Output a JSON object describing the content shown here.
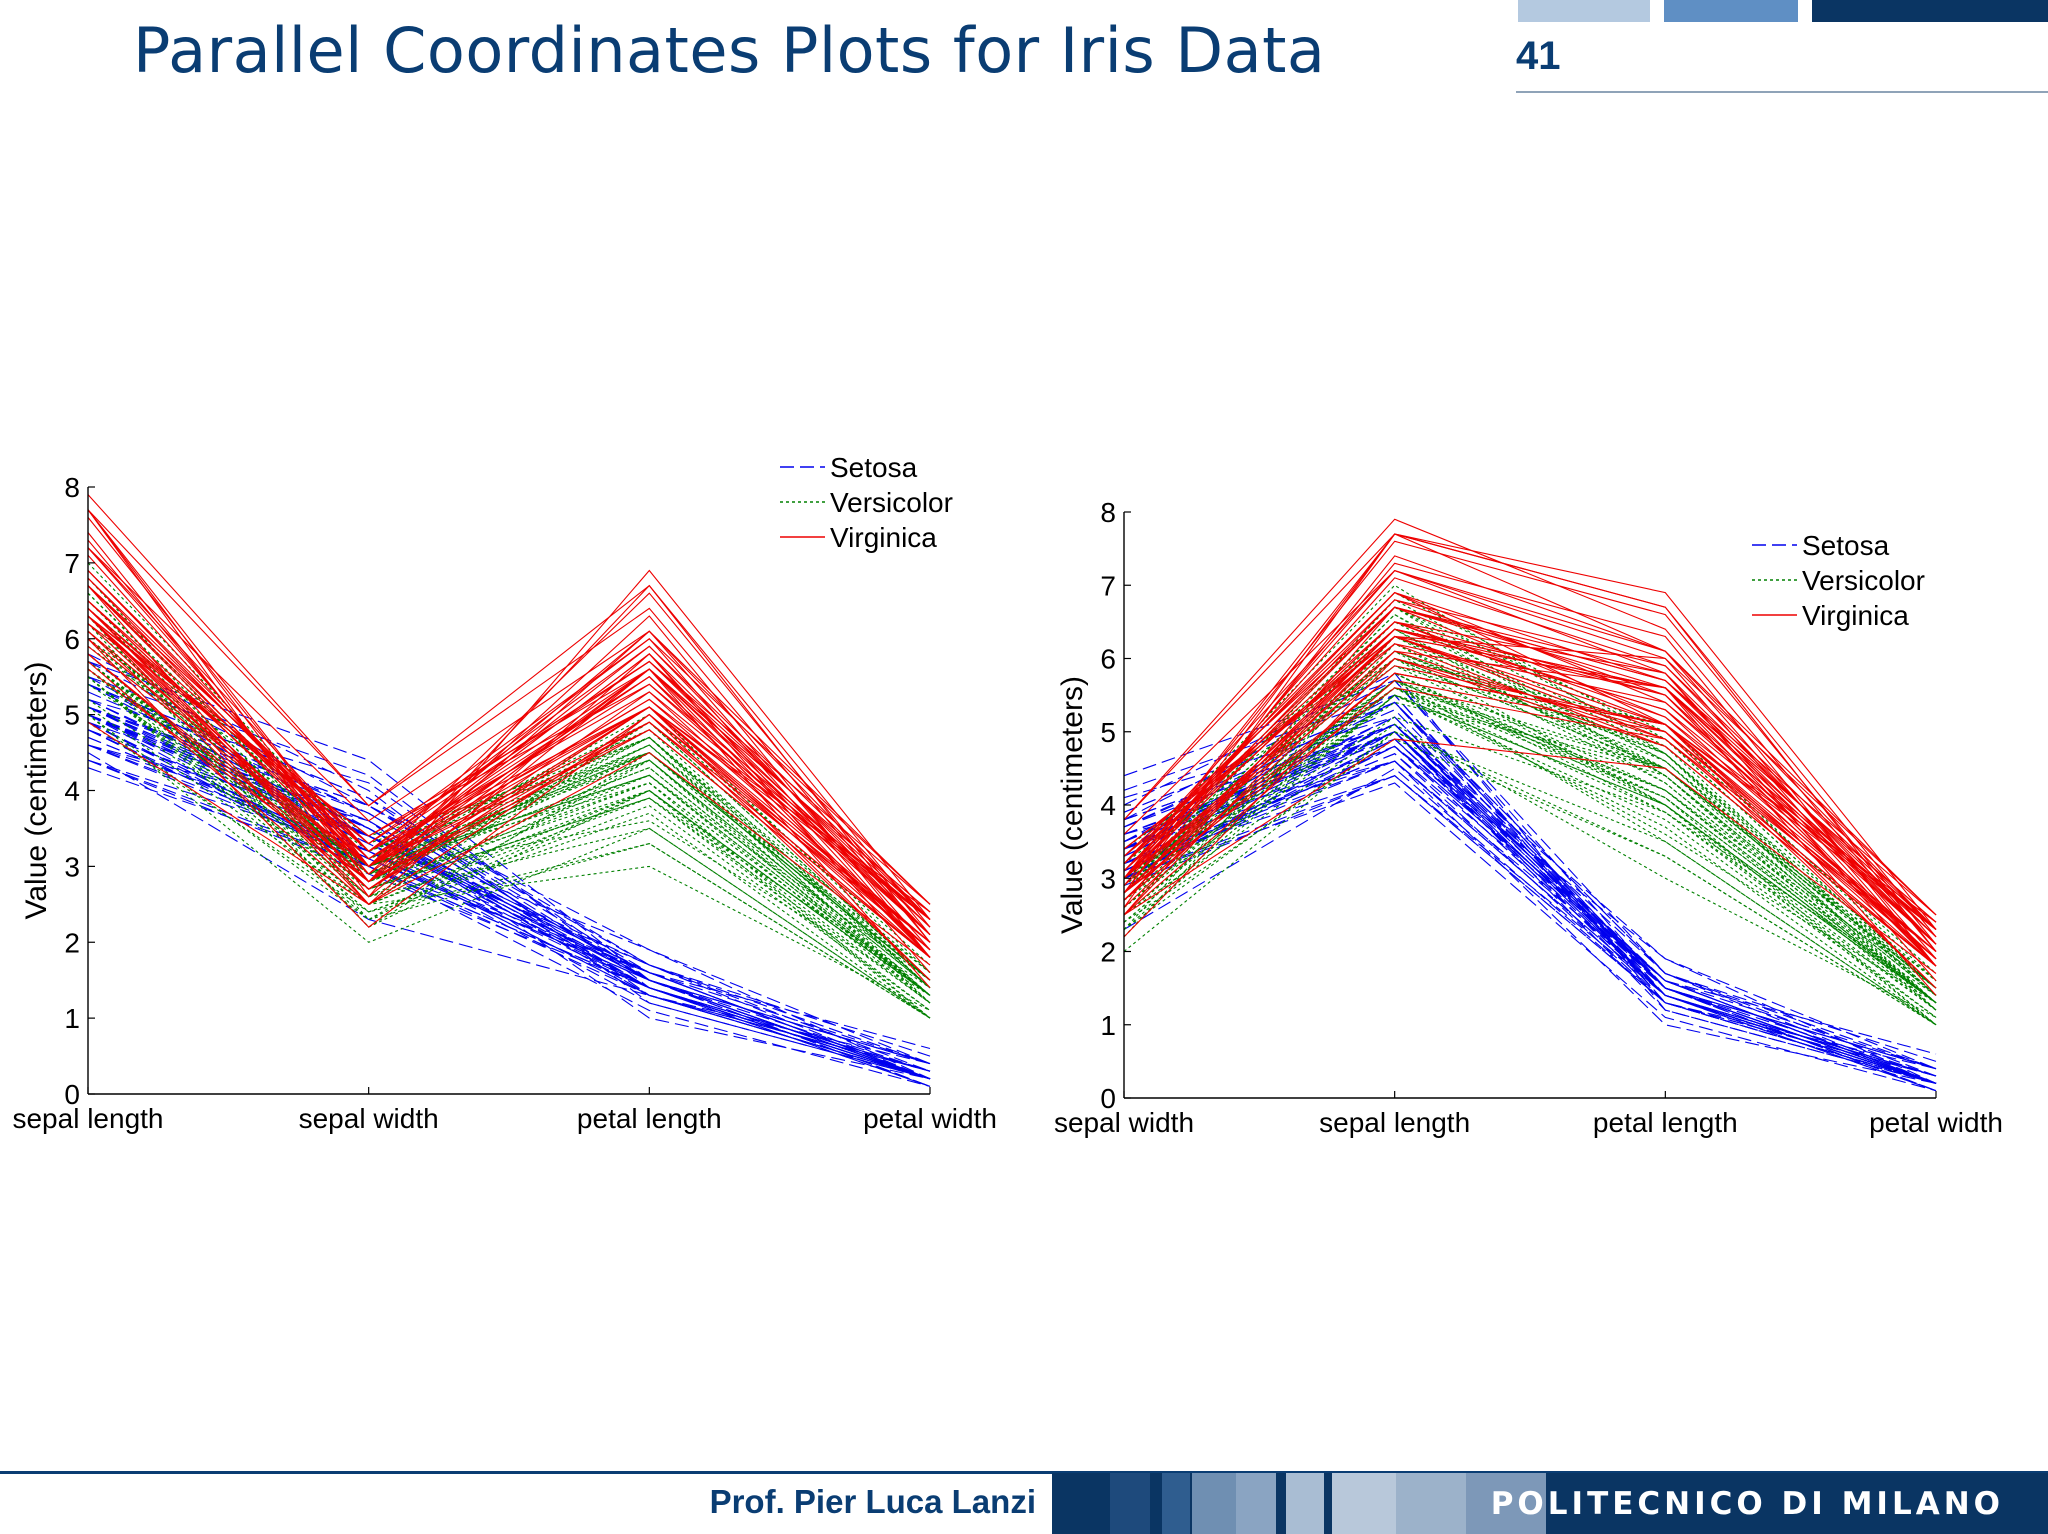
{
  "slide": {
    "title": "Parallel Coordinates Plots for Iris Data",
    "page_number": "41",
    "author": "Prof. Pier Luca Lanzi",
    "brand": "POLITECNICO DI MILANO"
  },
  "colors": {
    "title": "#0a3d73",
    "setosa": "#0000ee",
    "versicolor": "#008000",
    "virginica": "#ee0000"
  },
  "chart_data": [
    {
      "type": "line",
      "subtype": "parallel-coordinates",
      "axes": [
        "sepal length",
        "sepal width",
        "petal length",
        "petal width"
      ],
      "ylabel": "Value (centimeters)",
      "ylim": [
        0,
        8
      ],
      "yticks": [
        0,
        1,
        2,
        3,
        4,
        5,
        6,
        7,
        8
      ],
      "legend_position": "top-right",
      "legend": [
        "Setosa",
        "Versicolor",
        "Virginica"
      ]
    },
    {
      "type": "line",
      "subtype": "parallel-coordinates",
      "axes": [
        "sepal width",
        "sepal length",
        "petal length",
        "petal width"
      ],
      "ylabel": "Value (centimeters)",
      "ylim": [
        0,
        8
      ],
      "yticks": [
        0,
        1,
        2,
        3,
        4,
        5,
        6,
        7,
        8
      ],
      "legend_position": "top-right",
      "legend": [
        "Setosa",
        "Versicolor",
        "Virginica"
      ]
    }
  ],
  "series": [
    {
      "name": "Setosa",
      "values": [
        [
          5.1,
          3.5,
          1.4,
          0.2
        ],
        [
          4.9,
          3.0,
          1.4,
          0.2
        ],
        [
          4.7,
          3.2,
          1.3,
          0.2
        ],
        [
          4.6,
          3.1,
          1.5,
          0.2
        ],
        [
          5.0,
          3.6,
          1.4,
          0.2
        ],
        [
          5.4,
          3.9,
          1.7,
          0.4
        ],
        [
          4.6,
          3.4,
          1.4,
          0.3
        ],
        [
          5.0,
          3.4,
          1.5,
          0.2
        ],
        [
          4.4,
          2.9,
          1.4,
          0.2
        ],
        [
          4.9,
          3.1,
          1.5,
          0.1
        ],
        [
          5.4,
          3.7,
          1.5,
          0.2
        ],
        [
          4.8,
          3.4,
          1.6,
          0.2
        ],
        [
          4.8,
          3.0,
          1.4,
          0.1
        ],
        [
          4.3,
          3.0,
          1.1,
          0.1
        ],
        [
          5.8,
          4.0,
          1.2,
          0.2
        ],
        [
          5.7,
          4.4,
          1.5,
          0.4
        ],
        [
          5.4,
          3.9,
          1.3,
          0.4
        ],
        [
          5.1,
          3.5,
          1.4,
          0.3
        ],
        [
          5.7,
          3.8,
          1.7,
          0.3
        ],
        [
          5.1,
          3.8,
          1.5,
          0.3
        ],
        [
          5.4,
          3.4,
          1.7,
          0.2
        ],
        [
          5.1,
          3.7,
          1.5,
          0.4
        ],
        [
          4.6,
          3.6,
          1.0,
          0.2
        ],
        [
          5.1,
          3.3,
          1.7,
          0.5
        ],
        [
          4.8,
          3.4,
          1.9,
          0.2
        ],
        [
          5.0,
          3.0,
          1.6,
          0.2
        ],
        [
          5.0,
          3.4,
          1.6,
          0.4
        ],
        [
          5.2,
          3.5,
          1.5,
          0.2
        ],
        [
          5.2,
          3.4,
          1.4,
          0.2
        ],
        [
          4.7,
          3.2,
          1.6,
          0.2
        ],
        [
          4.8,
          3.1,
          1.6,
          0.2
        ],
        [
          5.4,
          3.4,
          1.5,
          0.4
        ],
        [
          5.2,
          4.1,
          1.5,
          0.1
        ],
        [
          5.5,
          4.2,
          1.4,
          0.2
        ],
        [
          4.9,
          3.1,
          1.5,
          0.2
        ],
        [
          5.0,
          3.2,
          1.2,
          0.2
        ],
        [
          5.5,
          3.5,
          1.3,
          0.2
        ],
        [
          4.9,
          3.6,
          1.4,
          0.1
        ],
        [
          4.4,
          3.0,
          1.3,
          0.2
        ],
        [
          5.1,
          3.4,
          1.5,
          0.2
        ],
        [
          5.0,
          3.5,
          1.3,
          0.3
        ],
        [
          4.5,
          2.3,
          1.3,
          0.3
        ],
        [
          4.4,
          3.2,
          1.3,
          0.2
        ],
        [
          5.0,
          3.5,
          1.6,
          0.6
        ],
        [
          5.1,
          3.8,
          1.9,
          0.4
        ],
        [
          4.8,
          3.0,
          1.4,
          0.3
        ],
        [
          5.1,
          3.8,
          1.6,
          0.2
        ],
        [
          4.6,
          3.2,
          1.4,
          0.2
        ],
        [
          5.3,
          3.7,
          1.5,
          0.2
        ],
        [
          5.0,
          3.3,
          1.4,
          0.2
        ]
      ]
    },
    {
      "name": "Versicolor",
      "values": [
        [
          7.0,
          3.2,
          4.7,
          1.4
        ],
        [
          6.4,
          3.2,
          4.5,
          1.5
        ],
        [
          6.9,
          3.1,
          4.9,
          1.5
        ],
        [
          5.5,
          2.3,
          4.0,
          1.3
        ],
        [
          6.5,
          2.8,
          4.6,
          1.5
        ],
        [
          5.7,
          2.8,
          4.5,
          1.3
        ],
        [
          6.3,
          3.3,
          4.7,
          1.6
        ],
        [
          4.9,
          2.4,
          3.3,
          1.0
        ],
        [
          6.6,
          2.9,
          4.6,
          1.3
        ],
        [
          5.2,
          2.7,
          3.9,
          1.4
        ],
        [
          5.0,
          2.0,
          3.5,
          1.0
        ],
        [
          5.9,
          3.0,
          4.2,
          1.5
        ],
        [
          6.0,
          2.2,
          4.0,
          1.0
        ],
        [
          6.1,
          2.9,
          4.7,
          1.4
        ],
        [
          5.6,
          2.9,
          3.6,
          1.3
        ],
        [
          6.7,
          3.1,
          4.4,
          1.4
        ],
        [
          5.6,
          3.0,
          4.5,
          1.5
        ],
        [
          5.8,
          2.7,
          4.1,
          1.0
        ],
        [
          6.2,
          2.2,
          4.5,
          1.5
        ],
        [
          5.6,
          2.5,
          3.9,
          1.1
        ],
        [
          5.9,
          3.2,
          4.8,
          1.8
        ],
        [
          6.1,
          2.8,
          4.0,
          1.3
        ],
        [
          6.3,
          2.5,
          4.9,
          1.5
        ],
        [
          6.1,
          2.8,
          4.7,
          1.2
        ],
        [
          6.4,
          2.9,
          4.3,
          1.3
        ],
        [
          6.6,
          3.0,
          4.4,
          1.4
        ],
        [
          6.8,
          2.8,
          4.8,
          1.4
        ],
        [
          6.7,
          3.0,
          5.0,
          1.7
        ],
        [
          6.0,
          2.9,
          4.5,
          1.5
        ],
        [
          5.7,
          2.6,
          3.5,
          1.0
        ],
        [
          5.5,
          2.4,
          3.8,
          1.1
        ],
        [
          5.5,
          2.4,
          3.7,
          1.0
        ],
        [
          5.8,
          2.7,
          3.9,
          1.2
        ],
        [
          6.0,
          2.7,
          5.1,
          1.6
        ],
        [
          5.4,
          3.0,
          4.5,
          1.5
        ],
        [
          6.0,
          3.4,
          4.5,
          1.6
        ],
        [
          6.7,
          3.1,
          4.7,
          1.5
        ],
        [
          6.3,
          2.3,
          4.4,
          1.3
        ],
        [
          5.6,
          3.0,
          4.1,
          1.3
        ],
        [
          5.5,
          2.5,
          4.0,
          1.3
        ],
        [
          5.5,
          2.6,
          4.4,
          1.2
        ],
        [
          6.1,
          3.0,
          4.6,
          1.4
        ],
        [
          5.8,
          2.6,
          4.0,
          1.2
        ],
        [
          5.0,
          2.3,
          3.3,
          1.0
        ],
        [
          5.6,
          2.7,
          4.2,
          1.3
        ],
        [
          5.7,
          3.0,
          4.2,
          1.2
        ],
        [
          5.7,
          2.9,
          4.2,
          1.3
        ],
        [
          6.2,
          2.9,
          4.3,
          1.3
        ],
        [
          5.1,
          2.5,
          3.0,
          1.1
        ],
        [
          5.7,
          2.8,
          4.1,
          1.3
        ]
      ]
    },
    {
      "name": "Virginica",
      "values": [
        [
          6.3,
          3.3,
          6.0,
          2.5
        ],
        [
          5.8,
          2.7,
          5.1,
          1.9
        ],
        [
          7.1,
          3.0,
          5.9,
          2.1
        ],
        [
          6.3,
          2.9,
          5.6,
          1.8
        ],
        [
          6.5,
          3.0,
          5.8,
          2.2
        ],
        [
          7.6,
          3.0,
          6.6,
          2.1
        ],
        [
          4.9,
          2.5,
          4.5,
          1.7
        ],
        [
          7.3,
          2.9,
          6.3,
          1.8
        ],
        [
          6.7,
          2.5,
          5.8,
          1.8
        ],
        [
          7.2,
          3.6,
          6.1,
          2.5
        ],
        [
          6.5,
          3.2,
          5.1,
          2.0
        ],
        [
          6.4,
          2.7,
          5.3,
          1.9
        ],
        [
          6.8,
          3.0,
          5.5,
          2.1
        ],
        [
          5.7,
          2.5,
          5.0,
          2.0
        ],
        [
          5.8,
          2.8,
          5.1,
          2.4
        ],
        [
          6.4,
          3.2,
          5.3,
          2.3
        ],
        [
          6.5,
          3.0,
          5.5,
          1.8
        ],
        [
          7.7,
          3.8,
          6.7,
          2.2
        ],
        [
          7.7,
          2.6,
          6.9,
          2.3
        ],
        [
          6.0,
          2.2,
          5.0,
          1.5
        ],
        [
          6.9,
          3.2,
          5.7,
          2.3
        ],
        [
          5.6,
          2.8,
          4.9,
          2.0
        ],
        [
          7.7,
          2.8,
          6.7,
          2.0
        ],
        [
          6.3,
          2.7,
          4.9,
          1.8
        ],
        [
          6.7,
          3.3,
          5.7,
          2.1
        ],
        [
          7.2,
          3.2,
          6.0,
          1.8
        ],
        [
          6.2,
          2.8,
          4.8,
          1.8
        ],
        [
          6.1,
          3.0,
          4.9,
          1.8
        ],
        [
          6.4,
          2.8,
          5.6,
          2.1
        ],
        [
          7.2,
          3.0,
          5.8,
          1.6
        ],
        [
          7.4,
          2.8,
          6.1,
          1.9
        ],
        [
          7.9,
          3.8,
          6.4,
          2.0
        ],
        [
          6.4,
          2.8,
          5.6,
          2.2
        ],
        [
          6.3,
          2.8,
          5.1,
          1.5
        ],
        [
          6.1,
          2.6,
          5.6,
          1.4
        ],
        [
          7.7,
          3.0,
          6.1,
          2.3
        ],
        [
          6.3,
          3.4,
          5.6,
          2.4
        ],
        [
          6.4,
          3.1,
          5.5,
          1.8
        ],
        [
          6.0,
          3.0,
          4.8,
          1.8
        ],
        [
          6.9,
          3.1,
          5.4,
          2.1
        ],
        [
          6.7,
          3.1,
          5.6,
          2.4
        ],
        [
          6.9,
          3.1,
          5.1,
          2.3
        ],
        [
          5.8,
          2.7,
          5.1,
          1.9
        ],
        [
          6.8,
          3.2,
          5.9,
          2.3
        ],
        [
          6.7,
          3.3,
          5.7,
          2.5
        ],
        [
          6.7,
          3.0,
          5.2,
          2.3
        ],
        [
          6.3,
          2.5,
          5.0,
          1.9
        ],
        [
          6.5,
          3.0,
          5.2,
          2.0
        ],
        [
          6.2,
          3.4,
          5.4,
          2.3
        ],
        [
          5.9,
          3.0,
          5.1,
          1.8
        ]
      ]
    }
  ]
}
